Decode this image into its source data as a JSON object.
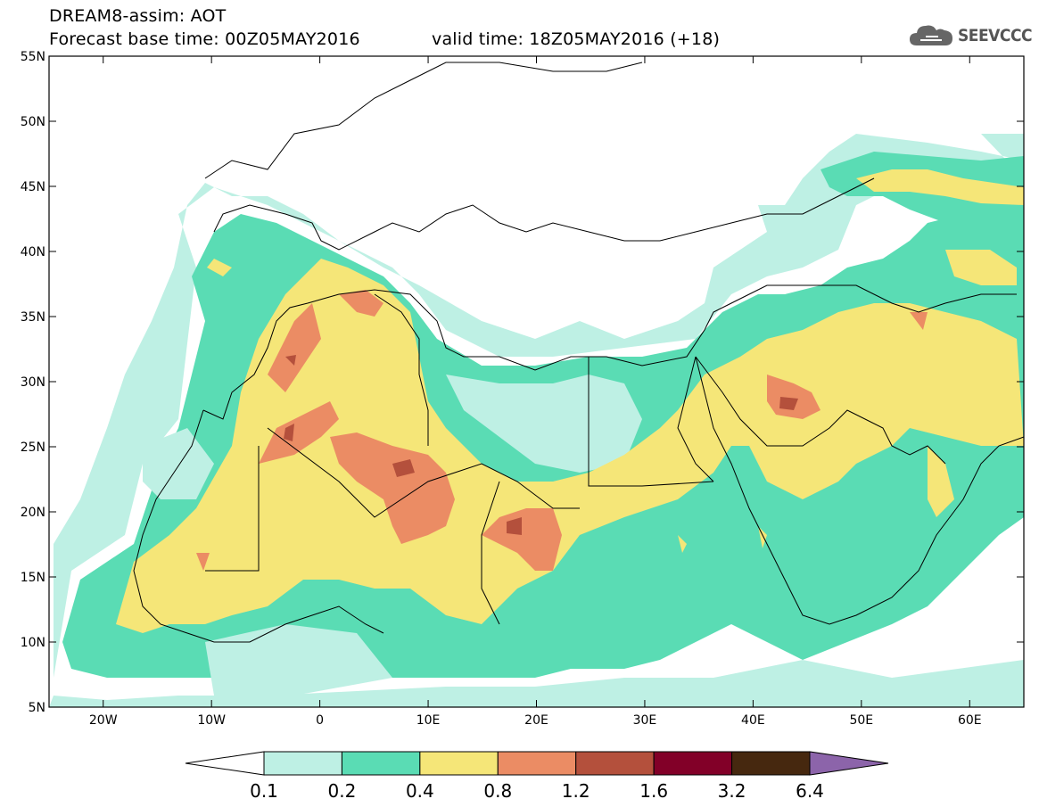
{
  "header": {
    "title_line1": "DREAM8-assim: AOT",
    "title_line2": "Forecast base time: 00Z05MAY2016",
    "valid_time": "valid time: 18Z05MAY2016 (+18)",
    "logo_text": "SEEVCCC"
  },
  "map": {
    "region": {
      "lon_range": [
        -25,
        65
      ],
      "lat_range": [
        5,
        55
      ]
    },
    "lat_ticks": [
      {
        "value": 55,
        "label": "55N"
      },
      {
        "value": 50,
        "label": "50N"
      },
      {
        "value": 45,
        "label": "45N"
      },
      {
        "value": 40,
        "label": "40N"
      },
      {
        "value": 35,
        "label": "35N"
      },
      {
        "value": 30,
        "label": "30N"
      },
      {
        "value": 25,
        "label": "25N"
      },
      {
        "value": 20,
        "label": "20N"
      },
      {
        "value": 15,
        "label": "15N"
      },
      {
        "value": 10,
        "label": "10N"
      },
      {
        "value": 5,
        "label": "5N"
      }
    ],
    "lon_ticks": [
      {
        "value": -20,
        "label": "20W"
      },
      {
        "value": -10,
        "label": "10W"
      },
      {
        "value": 0,
        "label": "0"
      },
      {
        "value": 10,
        "label": "10E"
      },
      {
        "value": 20,
        "label": "20E"
      },
      {
        "value": 30,
        "label": "30E"
      },
      {
        "value": 40,
        "label": "40E"
      },
      {
        "value": 50,
        "label": "50E"
      },
      {
        "value": 60,
        "label": "60E"
      }
    ],
    "aot_peaks_deg": [
      {
        "lon": 8,
        "lat": 22.5,
        "level": "1.6"
      },
      {
        "lon": 18,
        "lat": 19,
        "level": "1.6"
      },
      {
        "lon": 43,
        "lat": 28,
        "level": "1.6"
      },
      {
        "lon": -3,
        "lat": 26,
        "level": "1.6"
      }
    ]
  },
  "colorbar": {
    "labels": [
      "0.1",
      "0.2",
      "0.4",
      "0.8",
      "1.2",
      "1.6",
      "3.2",
      "6.4"
    ],
    "low_extend_color": "#ffffff",
    "colors": [
      "#bef0e4",
      "#5adcb4",
      "#f5e678",
      "#eb8c64",
      "#b4503c",
      "#820028",
      "#46280f"
    ],
    "high_extend_color": "#8c64aa"
  },
  "palette": {
    "c01": "#bef0e4",
    "c02": "#5adcb4",
    "c04": "#f5e678",
    "c08": "#eb8c64",
    "c12": "#b4503c",
    "c16": "#820028"
  }
}
